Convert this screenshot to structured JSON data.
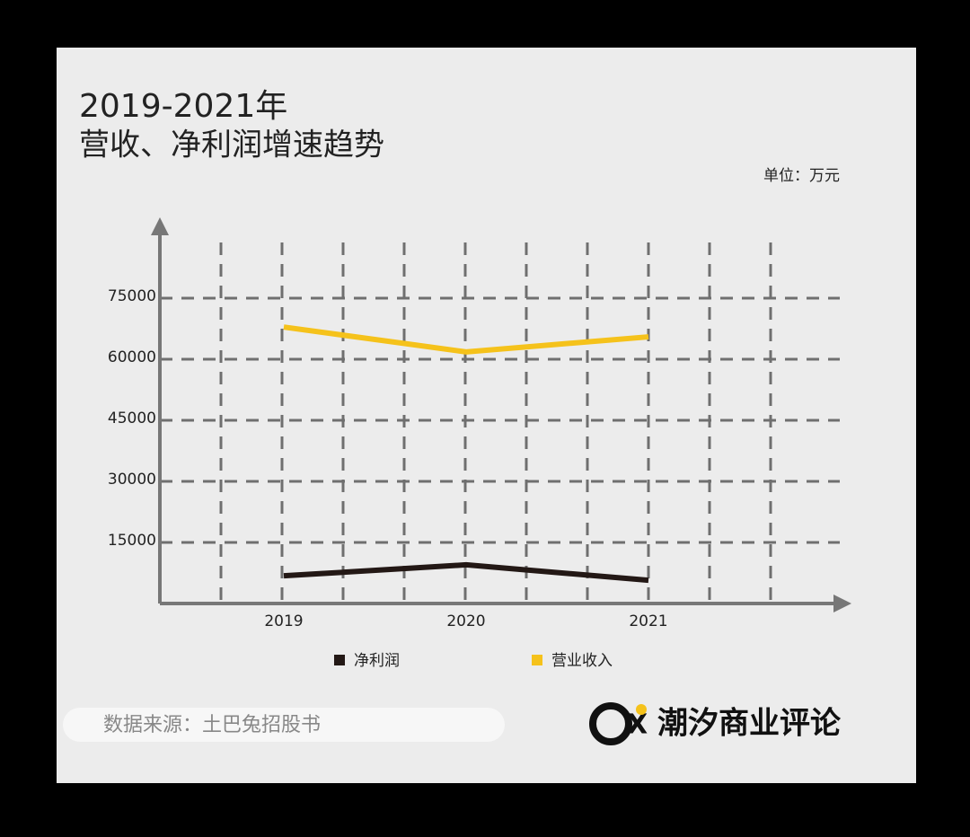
{
  "chart_data": {
    "type": "line",
    "title": "2019-2021年",
    "subtitle": "营收、净利润增速趋势",
    "unit": "单位：万元",
    "categories": [
      "2019",
      "2020",
      "2021"
    ],
    "series": [
      {
        "name": "净利润",
        "color": "#231815",
        "values": [
          6800,
          9500,
          5700
        ]
      },
      {
        "name": "营业收入",
        "color": "#f5c21b",
        "values": [
          67900,
          61800,
          65500
        ]
      }
    ],
    "ylim": [
      0,
      90000
    ],
    "yticks": [
      15000,
      30000,
      45000,
      60000,
      75000
    ],
    "grid": true,
    "source": "数据来源：土巴兔招股书",
    "brand": "潮汐商业评论"
  }
}
